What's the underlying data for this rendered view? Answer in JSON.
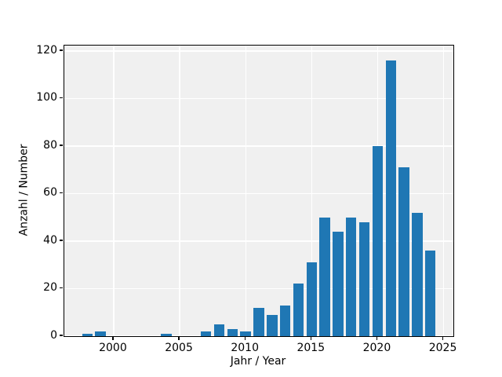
{
  "figure": {
    "background": "#ffffff",
    "plot_background": "#f0f0f0",
    "grid_color": "#ffffff",
    "spine_color": "#000000",
    "tick_color": "#000000",
    "text_color": "#000000"
  },
  "chart_data": {
    "type": "bar",
    "title": "",
    "xlabel": "Jahr / Year",
    "ylabel": "Anzahl / Number",
    "bar_color": "#1f77b4",
    "bar_width": 0.8,
    "categories": [
      1998,
      1999,
      2000,
      2001,
      2002,
      2003,
      2004,
      2005,
      2006,
      2007,
      2008,
      2009,
      2010,
      2011,
      2012,
      2013,
      2014,
      2015,
      2016,
      2017,
      2018,
      2019,
      2020,
      2021,
      2022,
      2023,
      2024
    ],
    "values": [
      1,
      2,
      0,
      0,
      0,
      0,
      1,
      0,
      0,
      2,
      5,
      3,
      2,
      12,
      9,
      13,
      22,
      31,
      50,
      44,
      50,
      48,
      80,
      116,
      71,
      52,
      36
    ],
    "xticks": [
      2000,
      2005,
      2010,
      2015,
      2020,
      2025
    ],
    "yticks": [
      0,
      20,
      40,
      60,
      80,
      100,
      120
    ],
    "xlim": [
      1996.26,
      2025.74
    ],
    "ylim": [
      0,
      122.3
    ],
    "grid": true,
    "legend_position": "none"
  }
}
